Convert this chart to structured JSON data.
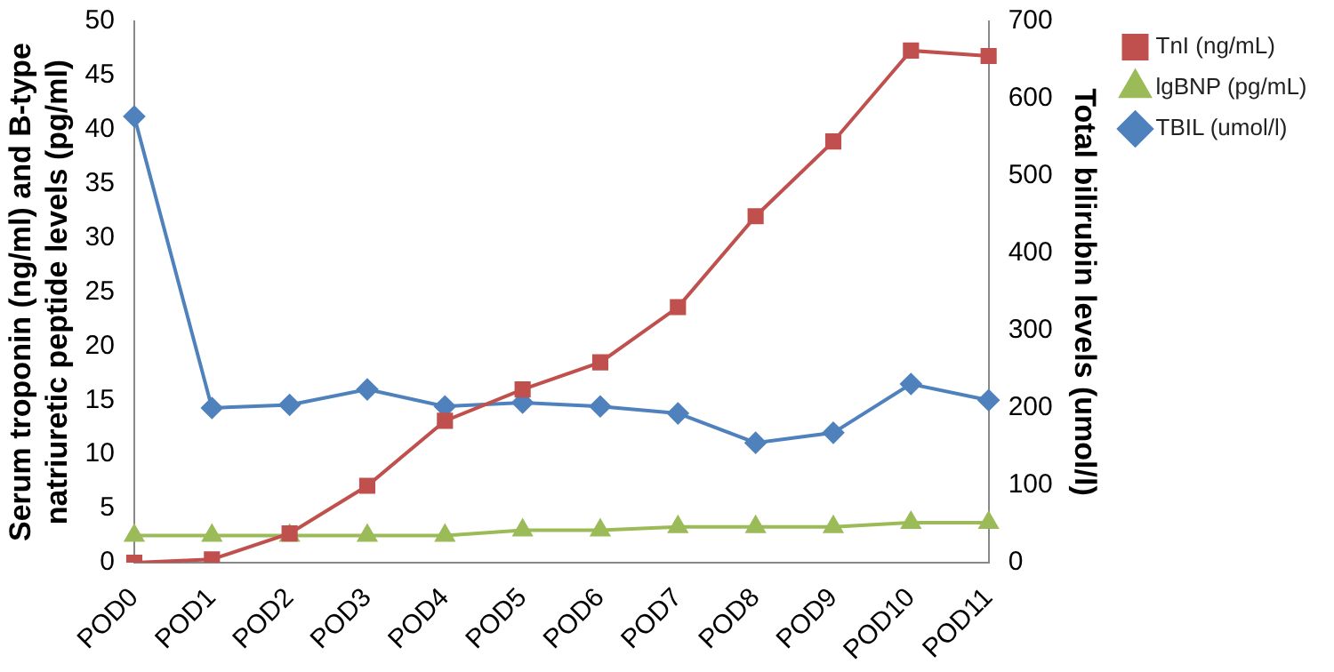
{
  "chart_data": {
    "type": "line",
    "categories": [
      "POD0",
      "POD1",
      "POD2",
      "POD3",
      "POD4",
      "POD5",
      "POD6",
      "POD7",
      "POD8",
      "POD9",
      "POD10",
      "POD11"
    ],
    "ylabel": "Serum troponin (ng/ml) and B-type natriuretic peptide levels (pg/ml)",
    "y2label": "Total bilirubin levels (umol/l)",
    "ylim": [
      0,
      50
    ],
    "yticks": [
      0,
      5,
      10,
      15,
      20,
      25,
      30,
      35,
      40,
      45,
      50
    ],
    "y2lim": [
      0,
      700
    ],
    "y2ticks": [
      0,
      100,
      200,
      300,
      400,
      500,
      600,
      700
    ],
    "grid": false,
    "legend": "right",
    "series": [
      {
        "name": "TnI (ng/mL)",
        "color": "#c0504d",
        "marker": "square",
        "values": [
          0,
          0.3,
          2.7,
          7.1,
          13.1,
          16,
          18.5,
          23.6,
          32,
          38.9,
          47.3,
          46.8
        ]
      },
      {
        "name": "lgBNP (pg/mL)",
        "color": "#9bbb59",
        "marker": "triangle",
        "values": [
          2.5,
          2.5,
          2.5,
          2.5,
          2.5,
          3,
          3,
          3.3,
          3.3,
          3.3,
          3.7,
          3.7
        ]
      },
      {
        "name": "TBIL (umol/l)",
        "color": "#4f81bd",
        "marker": "diamond",
        "axis": "y2",
        "values": [
          577,
          200,
          204,
          224,
          202,
          207,
          202,
          193,
          155,
          168,
          231,
          210
        ]
      }
    ]
  }
}
